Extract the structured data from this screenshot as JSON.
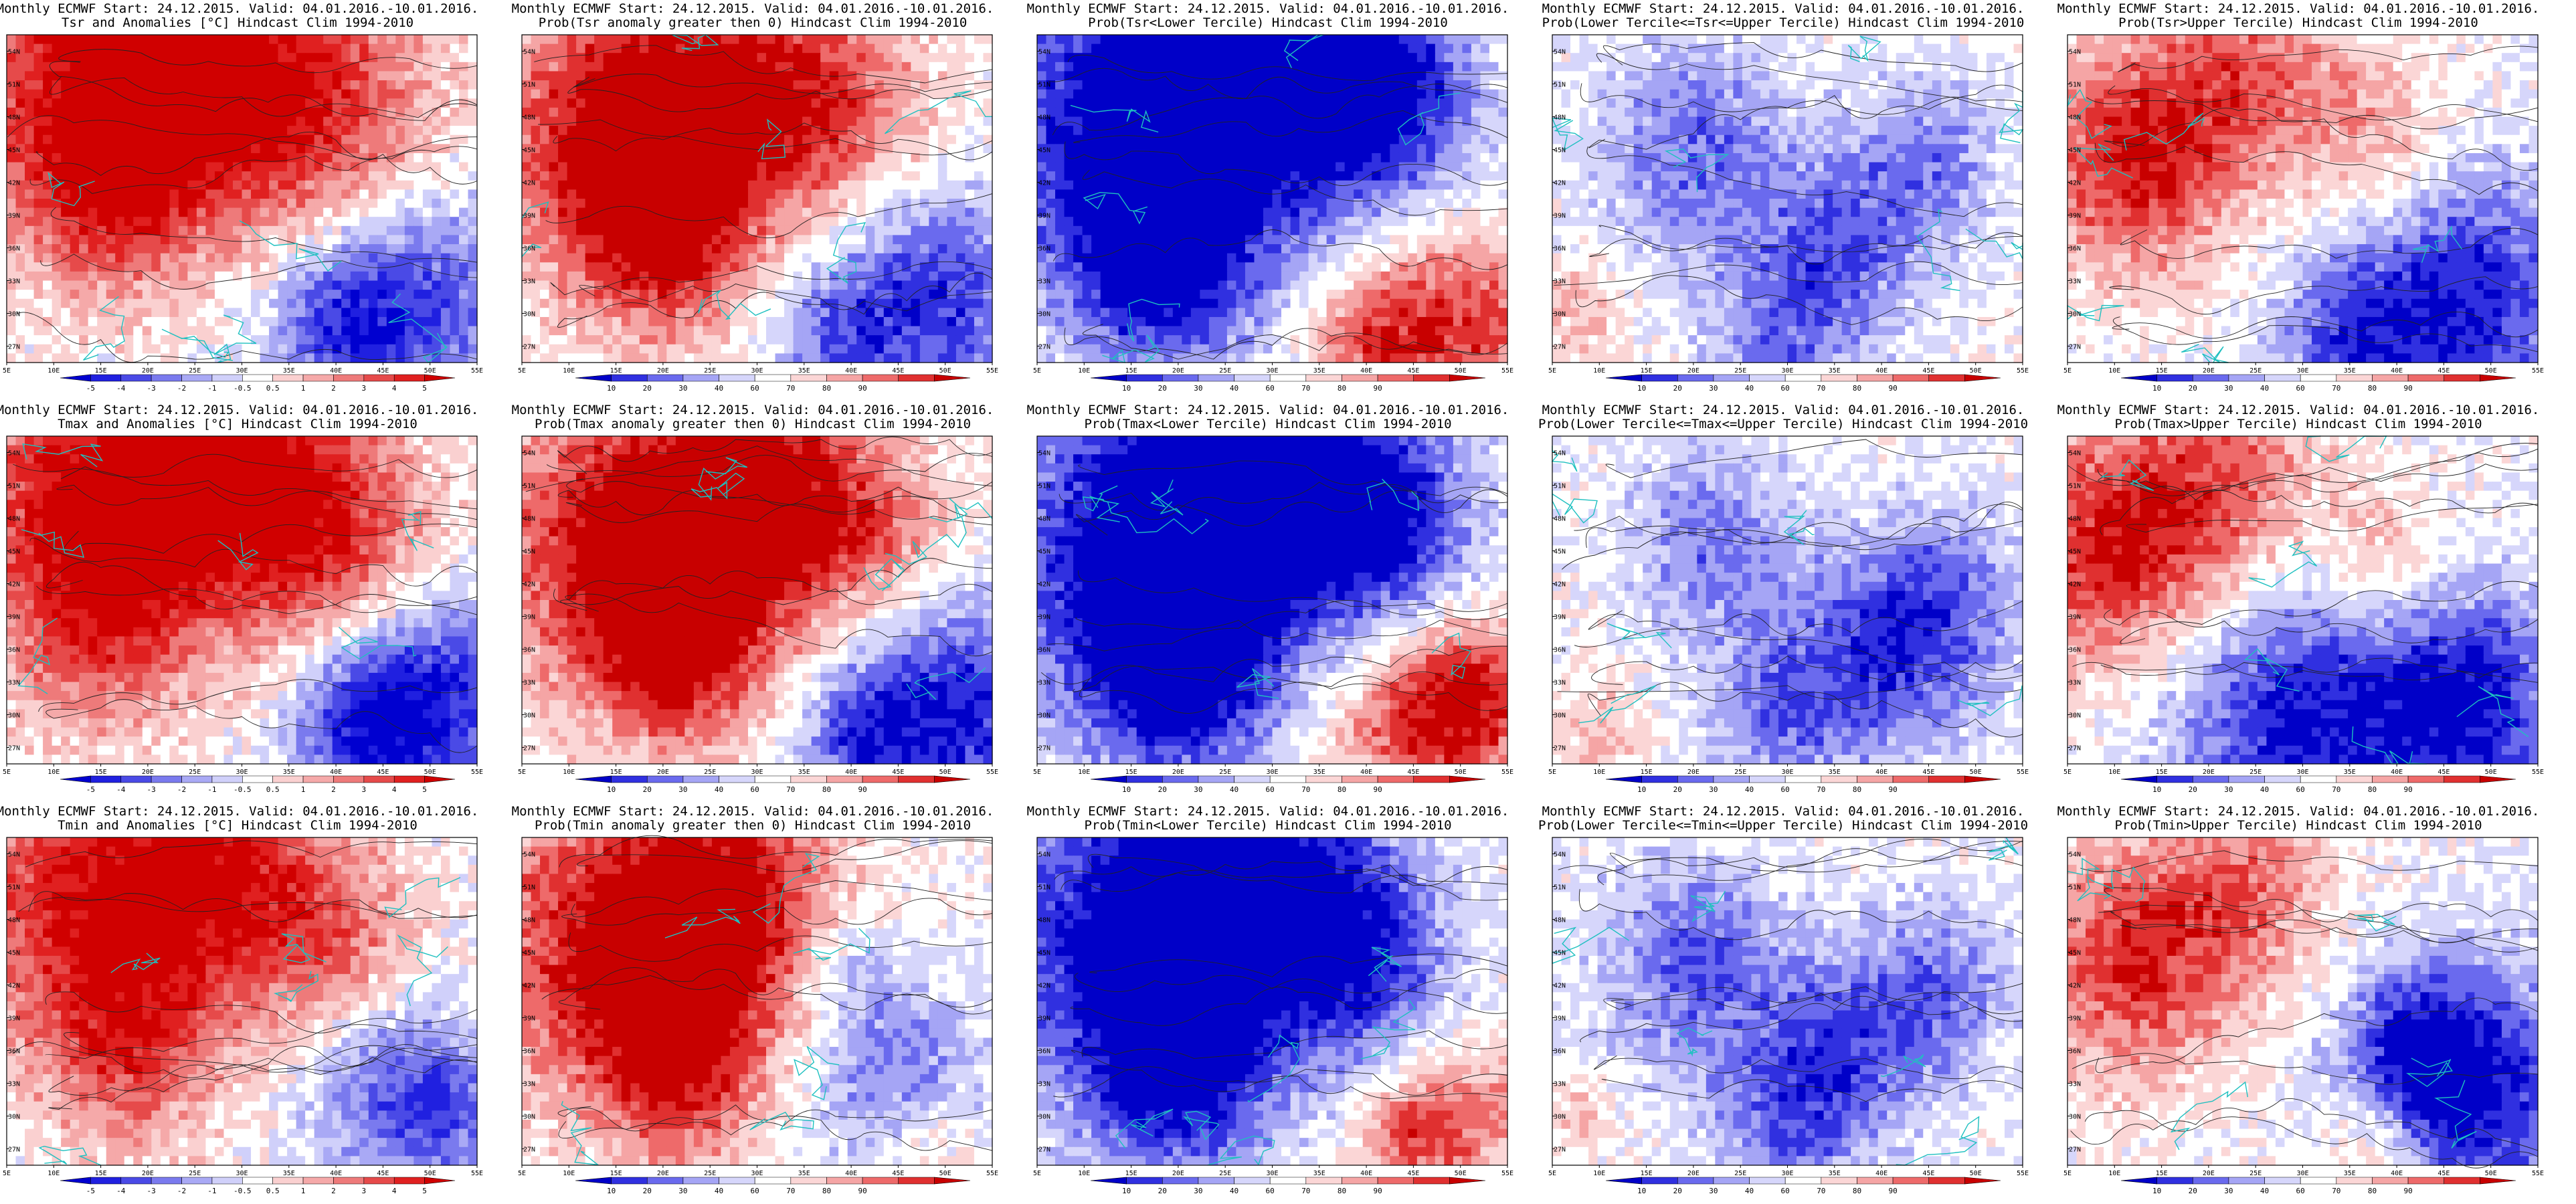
{
  "figure": {
    "rows": [
      "Tsr",
      "Tmax",
      "Tmin"
    ],
    "columns": [
      "anomaly",
      "prob_anomaly_gt_0",
      "prob_lower_tercile",
      "prob_middle_tercile",
      "prob_upper_tercile"
    ]
  },
  "common": {
    "header": "Monthly ECMWF Start: 24.12.2015. Valid: 04.01.2016.-10.01.2016.",
    "lon_ticks": [
      "5E",
      "10E",
      "15E",
      "20E",
      "25E",
      "30E",
      "35E",
      "40E",
      "45E",
      "50E",
      "55E"
    ],
    "lat_ticks": [
      "54N",
      "51N",
      "48N",
      "45N",
      "42N",
      "39N",
      "36N",
      "33N",
      "30N",
      "27N"
    ]
  },
  "colorbars": {
    "anomaly": {
      "labels": [
        "-5",
        "-4",
        "-3",
        "-2",
        "-1",
        "-0.5",
        "0.5",
        "1",
        "2",
        "3",
        "4",
        "5"
      ],
      "colors": [
        "#0000d0",
        "#2020e0",
        "#4a4ae6",
        "#7a7aee",
        "#a9a9f5",
        "#d0d0fa",
        "#ffffff",
        "#fad0d0",
        "#f5a9a9",
        "#ee7a7a",
        "#e64a4a",
        "#e02020",
        "#d00000"
      ]
    },
    "probability": {
      "labels": [
        "10",
        "20",
        "30",
        "40",
        "60",
        "70",
        "80",
        "90"
      ],
      "colors": [
        "#0000c8",
        "#3030e0",
        "#6a6aee",
        "#a5a5f5",
        "#d6d6fb",
        "#ffffff",
        "#fbd6d6",
        "#f5a5a5",
        "#ee6a6a",
        "#e03030",
        "#c80000"
      ]
    }
  },
  "chart_data": [
    {
      "type": "heatmap",
      "title": "Tsr and Anomalies [°C] Hindcast Clim 1994-2010",
      "colorbar": "anomaly",
      "legend": "bottom",
      "x_range": [
        5,
        55
      ],
      "y_range": [
        25.5,
        55.5
      ],
      "field": {
        "warm": [
          {
            "lon": 14,
            "lat": 50,
            "r": 14,
            "v": 0.95
          },
          {
            "lon": 28,
            "lat": 52,
            "r": 12,
            "v": 0.75
          },
          {
            "lon": 40,
            "lat": 48,
            "r": 12,
            "v": 0.6
          },
          {
            "lon": 17,
            "lat": 41,
            "r": 8,
            "v": 0.5
          }
        ],
        "cold": [
          {
            "lon": 48,
            "lat": 31,
            "r": 11,
            "v": 0.7
          },
          {
            "lon": 40,
            "lat": 29,
            "r": 7,
            "v": 0.5
          }
        ]
      }
    },
    {
      "type": "heatmap",
      "title": "Prob(Tsr anomaly greater then 0) Hindcast Clim 1994-2010",
      "colorbar": "probability",
      "legend": "bottom",
      "x_range": [
        5,
        55
      ],
      "y_range": [
        25.5,
        55.5
      ],
      "field": {
        "warm": [
          {
            "lon": 15,
            "lat": 46,
            "r": 13,
            "v": 1.0
          },
          {
            "lon": 28,
            "lat": 50,
            "r": 12,
            "v": 0.8
          },
          {
            "lon": 20,
            "lat": 36,
            "r": 8,
            "v": 0.7
          },
          {
            "lon": 40,
            "lat": 48,
            "r": 10,
            "v": 0.5
          }
        ],
        "cold": [
          {
            "lon": 48,
            "lat": 31,
            "r": 11,
            "v": 0.85
          },
          {
            "lon": 38,
            "lat": 28,
            "r": 6,
            "v": 0.4
          }
        ]
      }
    },
    {
      "type": "heatmap",
      "title": "Prob(Tsr<Lower Tercile) Hindcast Clim 1994-2010",
      "colorbar": "probability",
      "legend": "bottom",
      "x_range": [
        5,
        55
      ],
      "y_range": [
        25.5,
        55.5
      ],
      "field": {
        "warm": [
          {
            "lon": 50,
            "lat": 29,
            "r": 9,
            "v": 0.8
          },
          {
            "lon": 40,
            "lat": 28,
            "r": 6,
            "v": 0.6
          }
        ],
        "cold": [
          {
            "lon": 15,
            "lat": 48,
            "r": 15,
            "v": 1.0
          },
          {
            "lon": 30,
            "lat": 52,
            "r": 14,
            "v": 0.95
          },
          {
            "lon": 18,
            "lat": 34,
            "r": 10,
            "v": 0.85
          },
          {
            "lon": 42,
            "lat": 50,
            "r": 10,
            "v": 0.8
          }
        ]
      }
    },
    {
      "type": "heatmap",
      "title": "Prob(Lower Tercile<=Tsr<=Upper Tercile) Hindcast Clim 1994-2010",
      "colorbar": "probability",
      "legend": "bottom",
      "x_range": [
        5,
        55
      ],
      "y_range": [
        25.5,
        55.5
      ],
      "field": {
        "warm": [
          {
            "lon": 8,
            "lat": 30,
            "r": 5,
            "v": 0.3
          }
        ],
        "cold": [
          {
            "lon": 20,
            "lat": 45,
            "r": 10,
            "v": 0.6
          },
          {
            "lon": 35,
            "lat": 36,
            "r": 9,
            "v": 0.55
          },
          {
            "lon": 45,
            "lat": 44,
            "r": 8,
            "v": 0.5
          },
          {
            "lon": 30,
            "lat": 28,
            "r": 8,
            "v": 0.45
          }
        ]
      }
    },
    {
      "type": "heatmap",
      "title": "Prob(Tsr>Upper Tercile) Hindcast Clim 1994-2010",
      "colorbar": "probability",
      "legend": "bottom",
      "x_range": [
        5,
        55
      ],
      "y_range": [
        25.5,
        55.5
      ],
      "field": {
        "warm": [
          {
            "lon": 12,
            "lat": 44,
            "r": 10,
            "v": 0.9
          },
          {
            "lon": 24,
            "lat": 52,
            "r": 10,
            "v": 0.6
          },
          {
            "lon": 38,
            "lat": 46,
            "r": 8,
            "v": 0.4
          }
        ],
        "cold": [
          {
            "lon": 48,
            "lat": 31,
            "r": 12,
            "v": 0.9
          },
          {
            "lon": 35,
            "lat": 28,
            "r": 8,
            "v": 0.6
          }
        ]
      }
    },
    {
      "type": "heatmap",
      "title": "Tmax and Anomalies [°C] Hindcast Clim 1994-2010",
      "colorbar": "anomaly",
      "legend": "bottom",
      "x_range": [
        5,
        55
      ],
      "y_range": [
        25.5,
        55.5
      ],
      "field": {
        "warm": [
          {
            "lon": 15,
            "lat": 50,
            "r": 14,
            "v": 1.0
          },
          {
            "lon": 30,
            "lat": 52,
            "r": 12,
            "v": 0.8
          },
          {
            "lon": 40,
            "lat": 46,
            "r": 11,
            "v": 0.6
          },
          {
            "lon": 15,
            "lat": 38,
            "r": 9,
            "v": 0.5
          }
        ],
        "cold": [
          {
            "lon": 50,
            "lat": 31,
            "r": 10,
            "v": 0.9
          },
          {
            "lon": 42,
            "lat": 29,
            "r": 7,
            "v": 0.6
          }
        ]
      }
    },
    {
      "type": "heatmap",
      "title": "Prob(Tmax anomaly greater then 0) Hindcast Clim 1994-2010",
      "colorbar": "probability",
      "legend": "bottom",
      "x_range": [
        5,
        55
      ],
      "y_range": [
        25.5,
        55.5
      ],
      "field": {
        "warm": [
          {
            "lon": 16,
            "lat": 46,
            "r": 14,
            "v": 1.0
          },
          {
            "lon": 30,
            "lat": 50,
            "r": 12,
            "v": 0.85
          },
          {
            "lon": 22,
            "lat": 36,
            "r": 9,
            "v": 0.8
          },
          {
            "lon": 42,
            "lat": 47,
            "r": 9,
            "v": 0.5
          }
        ],
        "cold": [
          {
            "lon": 50,
            "lat": 30,
            "r": 11,
            "v": 0.95
          },
          {
            "lon": 40,
            "lat": 28,
            "r": 6,
            "v": 0.5
          }
        ]
      }
    },
    {
      "type": "heatmap",
      "title": "Prob(Tmax<Lower Tercile) Hindcast Clim 1994-2010",
      "colorbar": "probability",
      "legend": "bottom",
      "x_range": [
        5,
        55
      ],
      "y_range": [
        25.5,
        55.5
      ],
      "field": {
        "warm": [
          {
            "lon": 46,
            "lat": 29,
            "r": 9,
            "v": 0.85
          },
          {
            "lon": 52,
            "lat": 32,
            "r": 6,
            "v": 0.6
          }
        ],
        "cold": [
          {
            "lon": 16,
            "lat": 46,
            "r": 15,
            "v": 1.0
          },
          {
            "lon": 30,
            "lat": 51,
            "r": 14,
            "v": 0.95
          },
          {
            "lon": 20,
            "lat": 34,
            "r": 10,
            "v": 0.9
          },
          {
            "lon": 42,
            "lat": 48,
            "r": 9,
            "v": 0.8
          }
        ]
      }
    },
    {
      "type": "heatmap",
      "title": "Prob(Lower Tercile<=Tmax<=Upper Tercile) Hindcast Clim 1994-2010",
      "colorbar": "probability",
      "legend": "bottom",
      "x_range": [
        5,
        55
      ],
      "y_range": [
        25.5,
        55.5
      ],
      "field": {
        "warm": [
          {
            "lon": 10,
            "lat": 28,
            "r": 5,
            "v": 0.3
          }
        ],
        "cold": [
          {
            "lon": 22,
            "lat": 46,
            "r": 9,
            "v": 0.55
          },
          {
            "lon": 38,
            "lat": 34,
            "r": 10,
            "v": 0.6
          },
          {
            "lon": 46,
            "lat": 40,
            "r": 9,
            "v": 0.6
          },
          {
            "lon": 28,
            "lat": 30,
            "r": 7,
            "v": 0.45
          }
        ]
      }
    },
    {
      "type": "heatmap",
      "title": "Prob(Tmax>Upper Tercile) Hindcast Clim 1994-2010",
      "colorbar": "probability",
      "legend": "bottom",
      "x_range": [
        5,
        55
      ],
      "y_range": [
        25.5,
        55.5
      ],
      "field": {
        "warm": [
          {
            "lon": 10,
            "lat": 45,
            "r": 11,
            "v": 0.9
          },
          {
            "lon": 22,
            "lat": 51,
            "r": 10,
            "v": 0.6
          },
          {
            "lon": 38,
            "lat": 44,
            "r": 7,
            "v": 0.4
          }
        ],
        "cold": [
          {
            "lon": 30,
            "lat": 29,
            "r": 14,
            "v": 0.95
          },
          {
            "lon": 48,
            "lat": 31,
            "r": 10,
            "v": 0.9
          }
        ]
      }
    },
    {
      "type": "heatmap",
      "title": "Tmin and Anomalies [°C] Hindcast Clim 1994-2010",
      "colorbar": "anomaly",
      "legend": "bottom",
      "x_range": [
        5,
        55
      ],
      "y_range": [
        25.5,
        55.5
      ],
      "field": {
        "warm": [
          {
            "lon": 14,
            "lat": 50,
            "r": 14,
            "v": 0.9
          },
          {
            "lon": 28,
            "lat": 52,
            "r": 11,
            "v": 0.7
          },
          {
            "lon": 18,
            "lat": 36,
            "r": 9,
            "v": 0.55
          },
          {
            "lon": 40,
            "lat": 46,
            "r": 9,
            "v": 0.5
          }
        ],
        "cold": [
          {
            "lon": 46,
            "lat": 33,
            "r": 9,
            "v": 0.55
          },
          {
            "lon": 52,
            "lat": 30,
            "r": 6,
            "v": 0.4
          }
        ]
      }
    },
    {
      "type": "heatmap",
      "title": "Prob(Tmin anomaly greater then 0) Hindcast Clim 1994-2010",
      "colorbar": "probability",
      "legend": "bottom",
      "x_range": [
        5,
        55
      ],
      "y_range": [
        25.5,
        55.5
      ],
      "field": {
        "warm": [
          {
            "lon": 15,
            "lat": 46,
            "r": 14,
            "v": 1.0
          },
          {
            "lon": 28,
            "lat": 50,
            "r": 11,
            "v": 0.8
          },
          {
            "lon": 22,
            "lat": 35,
            "r": 9,
            "v": 0.75
          },
          {
            "lon": 48,
            "lat": 28,
            "r": 5,
            "v": 0.4
          }
        ],
        "cold": [
          {
            "lon": 45,
            "lat": 33,
            "r": 9,
            "v": 0.6
          },
          {
            "lon": 40,
            "lat": 44,
            "r": 6,
            "v": 0.3
          }
        ]
      }
    },
    {
      "type": "heatmap",
      "title": "Prob(Tmin<Lower Tercile) Hindcast Clim 1994-2010",
      "colorbar": "probability",
      "legend": "bottom",
      "x_range": [
        5,
        55
      ],
      "y_range": [
        25.5,
        55.5
      ],
      "field": {
        "warm": [
          {
            "lon": 50,
            "lat": 30,
            "r": 7,
            "v": 0.6
          },
          {
            "lon": 44,
            "lat": 28,
            "r": 5,
            "v": 0.5
          }
        ],
        "cold": [
          {
            "lon": 15,
            "lat": 47,
            "r": 15,
            "v": 1.0
          },
          {
            "lon": 30,
            "lat": 51,
            "r": 13,
            "v": 0.9
          },
          {
            "lon": 20,
            "lat": 34,
            "r": 10,
            "v": 0.85
          },
          {
            "lon": 40,
            "lat": 44,
            "r": 9,
            "v": 0.65
          }
        ]
      }
    },
    {
      "type": "heatmap",
      "title": "Prob(Lower Tercile<=Tmin<=Upper Tercile) Hindcast Clim 1994-2010",
      "colorbar": "probability",
      "legend": "bottom",
      "x_range": [
        5,
        55
      ],
      "y_range": [
        25.5,
        55.5
      ],
      "field": {
        "warm": [
          {
            "lon": 8,
            "lat": 30,
            "r": 4,
            "v": 0.25
          }
        ],
        "cold": [
          {
            "lon": 20,
            "lat": 44,
            "r": 10,
            "v": 0.65
          },
          {
            "lon": 36,
            "lat": 36,
            "r": 9,
            "v": 0.6
          },
          {
            "lon": 46,
            "lat": 42,
            "r": 8,
            "v": 0.55
          },
          {
            "lon": 30,
            "lat": 29,
            "r": 8,
            "v": 0.5
          }
        ]
      }
    },
    {
      "type": "heatmap",
      "title": "Prob(Tmin>Upper Tercile) Hindcast Clim 1994-2010",
      "colorbar": "probability",
      "legend": "bottom",
      "x_range": [
        5,
        55
      ],
      "y_range": [
        25.5,
        55.5
      ],
      "field": {
        "warm": [
          {
            "lon": 12,
            "lat": 44,
            "r": 10,
            "v": 0.85
          },
          {
            "lon": 24,
            "lat": 51,
            "r": 9,
            "v": 0.55
          },
          {
            "lon": 38,
            "lat": 28,
            "r": 5,
            "v": 0.5
          }
        ],
        "cold": [
          {
            "lon": 48,
            "lat": 32,
            "r": 12,
            "v": 0.95
          },
          {
            "lon": 42,
            "lat": 36,
            "r": 7,
            "v": 0.6
          }
        ]
      }
    }
  ]
}
